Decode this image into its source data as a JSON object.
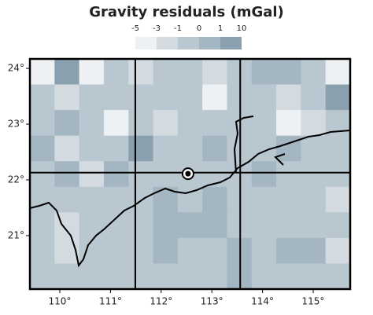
{
  "map": {
    "title": "Gravity residuals (mGal)",
    "colorbar": {
      "bounds": [
        -5,
        -3,
        -1,
        0,
        1,
        10
      ],
      "colors": [
        "#eef1f4",
        "#d3dbe1",
        "#b9c7d0",
        "#a4b6c2",
        "#8aa0af"
      ]
    },
    "xlim": [
      109.41,
      115.73
    ],
    "ylim": [
      20.04,
      24.17
    ],
    "xticks": [
      {
        "value": 110,
        "label": "110°"
      },
      {
        "value": 111,
        "label": "111°"
      },
      {
        "value": 112,
        "label": "112°"
      },
      {
        "value": 113,
        "label": "113°"
      },
      {
        "value": 114,
        "label": "114°"
      },
      {
        "value": 115,
        "label": "115°"
      }
    ],
    "yticks": [
      {
        "value": 21,
        "label": "21°"
      },
      {
        "value": 22,
        "label": "22°"
      },
      {
        "value": 23,
        "label": "23°"
      },
      {
        "value": 24,
        "label": "24°"
      }
    ],
    "dividers": {
      "lon": [
        111.49,
        113.56
      ],
      "lat": [
        22.13
      ]
    },
    "station": {
      "lon": 112.53,
      "lat": 22.11
    },
    "cells": [
      [
        -4,
        5,
        -4,
        -0.5,
        -2,
        -0.5,
        -0.5,
        -2,
        -0.5,
        0.5,
        0.5,
        -0.5,
        -4
      ],
      [
        -0.5,
        -2,
        -0.5,
        -0.5,
        -0.5,
        -0.5,
        -0.5,
        -4,
        -0.5,
        -0.5,
        -2,
        -0.5,
        5
      ],
      [
        -0.5,
        0.5,
        -0.5,
        -4,
        -0.5,
        -2,
        -0.5,
        -0.5,
        -0.5,
        -0.5,
        -4,
        -2,
        -0.5
      ],
      [
        0.5,
        -2,
        -0.5,
        -0.5,
        5,
        -0.5,
        -0.5,
        0.5,
        -0.5,
        -0.5,
        0.5,
        -0.5,
        -0.5
      ],
      [
        -0.5,
        0.5,
        -2,
        0.5,
        -0.5,
        -0.5,
        -0.5,
        -0.5,
        -0.5,
        0.5,
        -0.5,
        -0.5,
        -0.5
      ],
      [
        -0.5,
        -0.5,
        -0.5,
        -0.5,
        -0.5,
        0.5,
        -0.5,
        0.5,
        -0.5,
        -0.5,
        -0.5,
        -0.5,
        -2
      ],
      [
        -0.5,
        -2,
        -0.5,
        -0.5,
        -0.5,
        0.5,
        0.5,
        0.5,
        -0.5,
        -0.5,
        -0.5,
        -0.5,
        -0.5
      ],
      [
        -0.5,
        -2,
        -0.5,
        -0.5,
        -0.5,
        0.5,
        -0.5,
        -0.5,
        0.5,
        -0.5,
        0.5,
        0.5,
        -2
      ],
      [
        -0.5,
        -0.5,
        -0.5,
        -0.5,
        -0.5,
        -0.5,
        -0.5,
        -0.5,
        0.5,
        -0.5,
        -0.5,
        -0.5,
        -0.5
      ]
    ]
  }
}
